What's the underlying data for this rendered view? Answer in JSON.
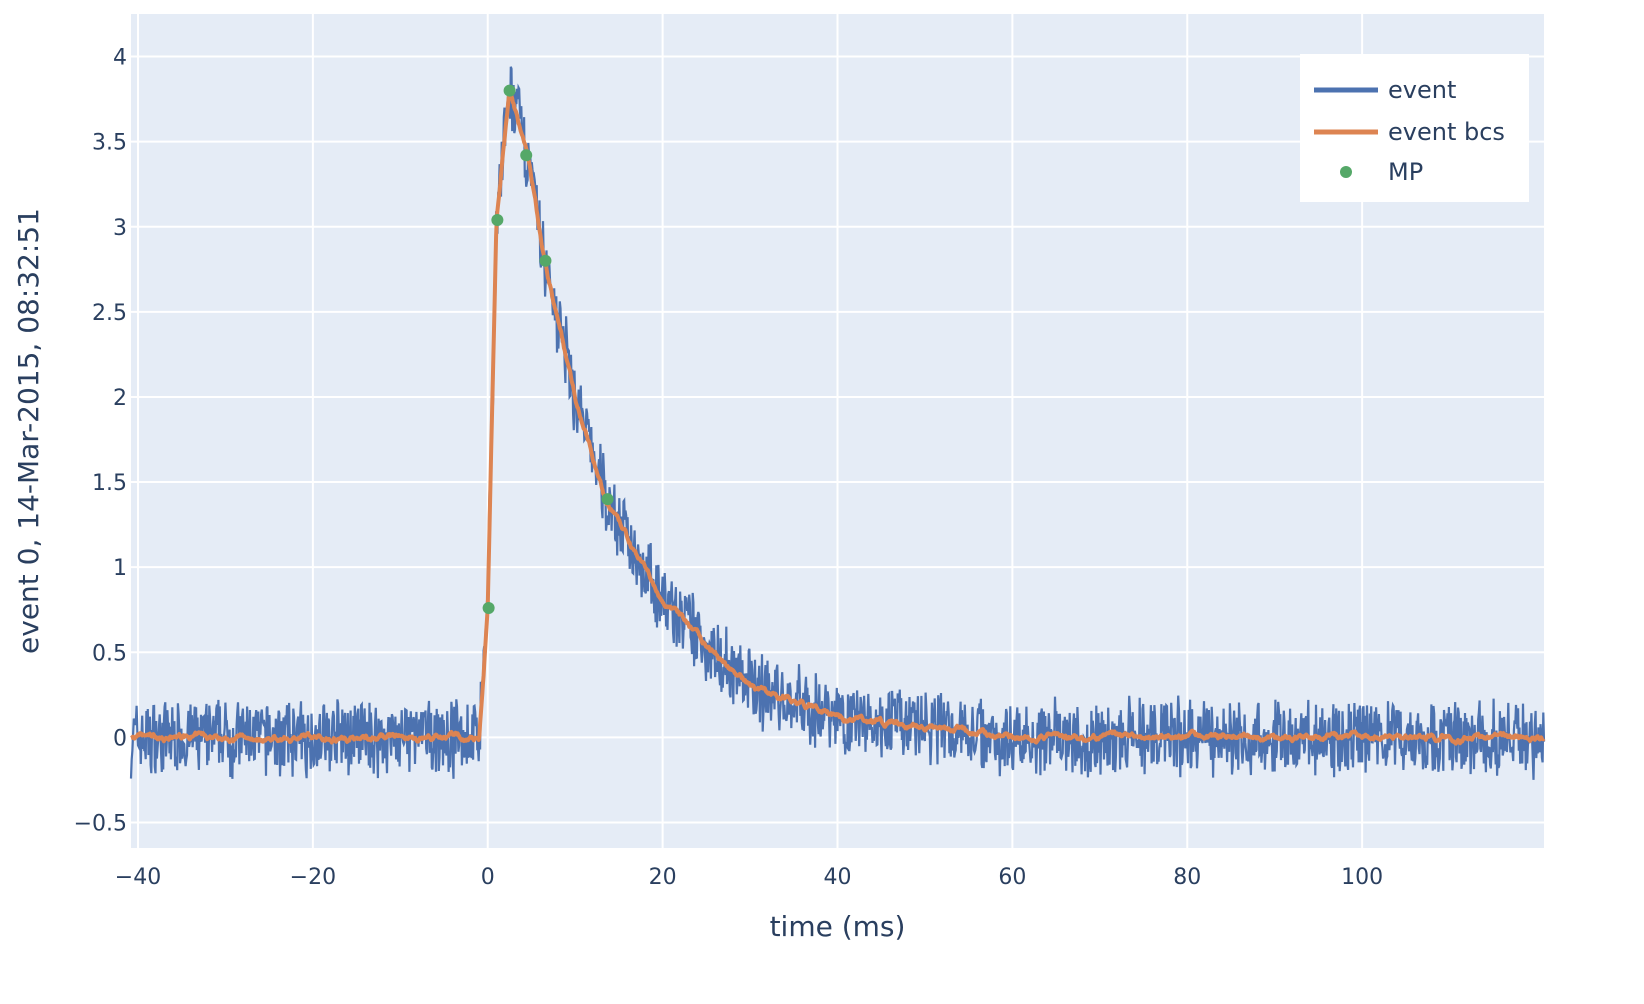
{
  "chart_data": {
    "type": "line",
    "xlabel": "time (ms)",
    "ylabel": "event 0, 14-Mar-2015, 08:32:51",
    "xlim": [
      -40.8,
      120.8
    ],
    "ylim": [
      -0.65,
      4.25
    ],
    "x_ticks": [
      -40,
      -20,
      0,
      20,
      40,
      60,
      80,
      100
    ],
    "x_tick_labels": [
      "−40",
      "−20",
      "0",
      "20",
      "40",
      "60",
      "80",
      "100"
    ],
    "y_ticks": [
      -0.5,
      0,
      0.5,
      1,
      1.5,
      2,
      2.5,
      3,
      3.5,
      4
    ],
    "y_tick_labels": [
      "−0.5",
      "0",
      "0.5",
      "1",
      "1.5",
      "2",
      "2.5",
      "3",
      "3.5",
      "4"
    ],
    "grid": true,
    "legend_position": "top-right",
    "colors": {
      "plot_background": "#e5ecf6",
      "grid": "#ffffff",
      "event": "#4c72b0",
      "event_bcs": "#dd8452",
      "mp": "#55a868"
    },
    "series": [
      {
        "name": "event",
        "kind": "line",
        "description_values": "noisy raw signal: baseline ~0 with noise amplitude ~±0.25, rising at t=0 to peak ~3.8 at t≈2.5 ms, exponential decay to baseline by ~45 ms",
        "noise_amplitude": 0.25,
        "key_points": {
          "x": [
            -40,
            -1,
            0,
            1,
            2.5,
            4.5,
            6.5,
            10,
            13.5,
            20,
            30,
            40,
            60,
            120
          ],
          "y": [
            0,
            0,
            0.75,
            3.04,
            3.8,
            3.42,
            2.8,
            2.0,
            1.4,
            0.8,
            0.3,
            0.12,
            0.0,
            0.0
          ]
        }
      },
      {
        "name": "event bcs",
        "kind": "line",
        "description_values": "smoothed baseline-corrected signal following event trace",
        "key_points": {
          "x": [
            -40,
            -1,
            0,
            1,
            2.5,
            4.5,
            6.5,
            10,
            13.5,
            20,
            30,
            40,
            60,
            120
          ],
          "y": [
            0,
            0,
            0.75,
            3.04,
            3.78,
            3.42,
            2.8,
            2.0,
            1.4,
            0.8,
            0.3,
            0.12,
            0.0,
            0.0
          ]
        }
      },
      {
        "name": "MP",
        "kind": "markers",
        "x": [
          0.1,
          1.1,
          2.5,
          4.4,
          6.6,
          13.7
        ],
        "y": [
          0.76,
          3.04,
          3.8,
          3.42,
          2.8,
          1.4
        ]
      }
    ]
  }
}
